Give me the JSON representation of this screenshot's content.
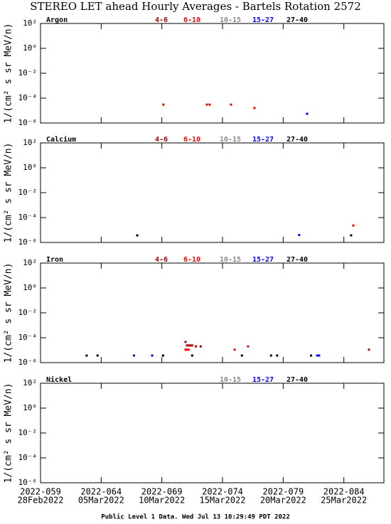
{
  "title": "STEREO LET ahead Hourly Averages - Bartels Rotation 2572",
  "footer": "Public Level 1 Data. Wed Jul 13 10:29:49 PDT 2022",
  "chart_data": [
    {
      "type": "scatter",
      "title": "Argon",
      "ylabel": "1/(cm² s sr MeV/n)",
      "log_y": true,
      "xlim": [
        59,
        87.3
      ],
      "ylim": [
        1e-06,
        100
      ],
      "yticks": [
        {
          "value": 100,
          "label": "10²"
        },
        {
          "value": 1,
          "label": "10⁰"
        },
        {
          "value": 0.01,
          "label": "10⁻²"
        },
        {
          "value": 0.0001,
          "label": "10⁻⁴"
        },
        {
          "value": 1e-06,
          "label": "10⁻⁶"
        }
      ],
      "series": [
        {
          "name": "4-6",
          "color": "#b00000",
          "x": [],
          "values": []
        },
        {
          "name": "6-10",
          "color": "#ff0000",
          "x": [
            69.13,
            72.71,
            72.94,
            74.7,
            76.63
          ],
          "values": [
            3e-05,
            3e-05,
            3e-05,
            3e-05,
            1.6e-05
          ]
        },
        {
          "name": "10-15",
          "color": "#888888",
          "x": [],
          "values": []
        },
        {
          "name": "15-27",
          "color": "#0000ff",
          "x": [
            80.97
          ],
          "values": [
            5.5e-06
          ]
        },
        {
          "name": "27-40",
          "color": "#000000",
          "x": [],
          "values": []
        }
      ]
    },
    {
      "type": "scatter",
      "title": "Calcium",
      "ylabel": "1/(cm² s sr MeV/n)",
      "log_y": true,
      "xlim": [
        59,
        87.3
      ],
      "ylim": [
        1e-06,
        100
      ],
      "yticks": [
        {
          "value": 100,
          "label": "10²"
        },
        {
          "value": 1,
          "label": "10⁰"
        },
        {
          "value": 0.01,
          "label": "10⁻²"
        },
        {
          "value": 0.0001,
          "label": "10⁻⁴"
        },
        {
          "value": 1e-06,
          "label": "10⁻⁶"
        }
      ],
      "series": [
        {
          "name": "4-6",
          "color": "#b00000",
          "x": [],
          "values": []
        },
        {
          "name": "6-10",
          "color": "#ff0000",
          "x": [
            84.78
          ],
          "values": [
            2.3e-05
          ]
        },
        {
          "name": "10-15",
          "color": "#888888",
          "x": [],
          "values": []
        },
        {
          "name": "15-27",
          "color": "#0000ff",
          "x": [
            80.32
          ],
          "values": [
            4e-06
          ]
        },
        {
          "name": "27-40",
          "color": "#000000",
          "x": [
            66.97,
            84.6
          ],
          "values": [
            3.7e-06,
            3.7e-06
          ]
        }
      ]
    },
    {
      "type": "scatter",
      "title": "Iron",
      "ylabel": "1/(cm² s sr MeV/n)",
      "log_y": true,
      "xlim": [
        59,
        87.3
      ],
      "ylim": [
        1e-06,
        100
      ],
      "yticks": [
        {
          "value": 100,
          "label": "10²"
        },
        {
          "value": 1,
          "label": "10⁰"
        },
        {
          "value": 0.01,
          "label": "10⁻²"
        },
        {
          "value": 0.0001,
          "label": "10⁻⁴"
        },
        {
          "value": 1e-06,
          "label": "10⁻⁶"
        }
      ],
      "series": [
        {
          "name": "4-6",
          "color": "#b00000",
          "x": [
            70.95,
            71.07,
            71.2,
            71.35,
            71.5,
            71.8,
            72.2,
            86.07
          ],
          "values": [
            4.6e-05,
            2.4e-05,
            2.4e-05,
            2.4e-05,
            2.4e-05,
            2e-05,
            2e-05,
            1.1e-05
          ]
        },
        {
          "name": "6-10",
          "color": "#ff0000",
          "x": [
            70.95,
            71.07,
            71.2,
            75.0,
            76.1
          ],
          "values": [
            1.1e-05,
            1.1e-05,
            1.1e-05,
            1.1e-05,
            2e-05
          ]
        },
        {
          "name": "10-15",
          "color": "#888888",
          "x": [],
          "values": []
        },
        {
          "name": "15-27",
          "color": "#0000ff",
          "x": [
            66.7,
            68.2,
            81.8,
            81.96
          ],
          "values": [
            3.7e-06,
            3.7e-06,
            3.7e-06,
            3.7e-06
          ]
        },
        {
          "name": "27-40",
          "color": "#000000",
          "x": [
            62.8,
            63.7,
            69.1,
            71.5,
            75.6,
            78.0,
            78.5,
            81.3
          ],
          "values": [
            3.7e-06,
            3.7e-06,
            3.7e-06,
            3.7e-06,
            3.7e-06,
            3.7e-06,
            3.7e-06,
            3.7e-06
          ]
        }
      ]
    },
    {
      "type": "scatter",
      "title": "Nickel",
      "ylabel": "1/(cm² s sr MeV/n)",
      "log_y": true,
      "xlim": [
        59,
        87.3
      ],
      "ylim": [
        1e-06,
        100
      ],
      "yticks": [
        {
          "value": 100,
          "label": "10²"
        },
        {
          "value": 1,
          "label": "10⁰"
        },
        {
          "value": 0.01,
          "label": "10⁻²"
        },
        {
          "value": 0.0001,
          "label": "10⁻⁴"
        },
        {
          "value": 1e-06,
          "label": "10⁻⁶"
        }
      ],
      "xticks": [
        {
          "value": 59,
          "label": "2022-059"
        },
        {
          "value": 64,
          "label": "2022-064"
        },
        {
          "value": 69,
          "label": "2022-069"
        },
        {
          "value": 74,
          "label": "2022-074"
        },
        {
          "value": 79,
          "label": "2022-079"
        },
        {
          "value": 84,
          "label": "2022-084"
        }
      ],
      "xtick_dates": [
        "28Feb2022",
        "05Mar2022",
        "10Mar2022",
        "15Mar2022",
        "20Mar2022",
        "25Mar2022"
      ],
      "series": [
        {
          "name": "10-15",
          "color": "#888888",
          "x": [],
          "values": []
        },
        {
          "name": "15-27",
          "color": "#0000ff",
          "x": [],
          "values": []
        },
        {
          "name": "27-40",
          "color": "#000000",
          "x": [],
          "values": []
        }
      ]
    }
  ]
}
